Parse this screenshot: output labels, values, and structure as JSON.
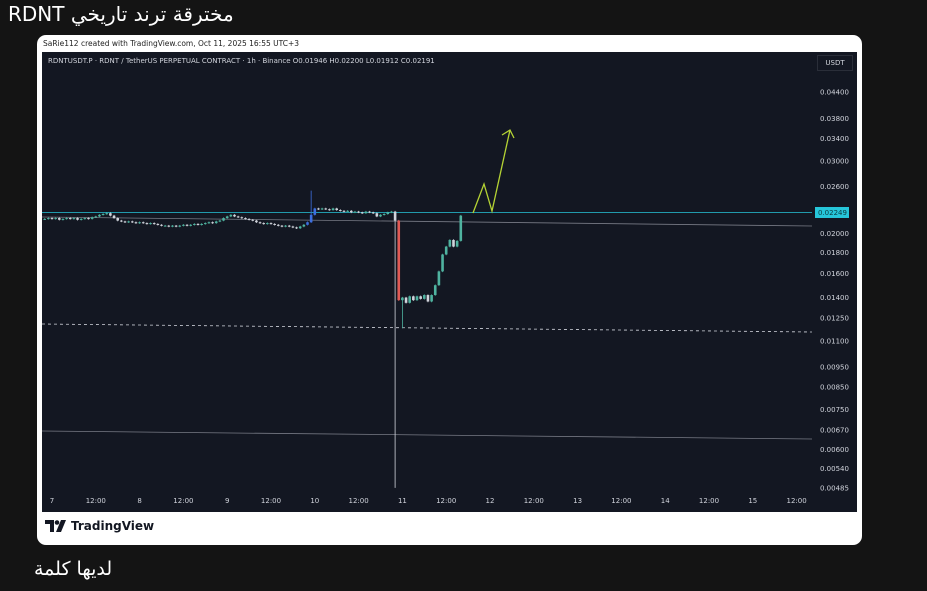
{
  "post": {
    "title": "مخترقة ترند تاريخي RDNT",
    "footer_text": "لديها كلمة"
  },
  "card": {
    "credit": "SaRie112 created with TradingView.com, Oct 11, 2025 16:55 UTC+3",
    "brand": "TradingView"
  },
  "chart_header": {
    "legend": "RDNTUSDT.P · RDNT / TetherUS PERPETUAL CONTRACT · 1h · Binance  O0.01946  H0.02200  L0.01912  C0.02191",
    "currency": "USDT"
  },
  "chart_data": {
    "type": "candlestick",
    "scale": "log",
    "grid": false,
    "current_price_label": "0.02249",
    "y_ticks": [
      "0.04400",
      "0.03800",
      "0.03400",
      "0.03000",
      "0.02600",
      "0.02000",
      "0.01800",
      "0.01600",
      "0.01400",
      "0.01250",
      "0.01100",
      "0.00950",
      "0.00850",
      "0.00750",
      "0.00670",
      "0.00600",
      "0.00540",
      "0.00485"
    ],
    "x_ticks": [
      "7",
      "12:00",
      "8",
      "12:00",
      "9",
      "12:00",
      "10",
      "12:00",
      "11",
      "12:00",
      "12",
      "12:00",
      "13",
      "12:00",
      "14",
      "12:00",
      "15",
      "12:00"
    ],
    "closes": [
      0.0217,
      0.0218,
      0.0217,
      0.0218,
      0.0216,
      0.0217,
      0.0218,
      0.0217,
      0.0218,
      0.0216,
      0.0217,
      0.0218,
      0.0217,
      0.0219,
      0.022,
      0.0222,
      0.0223,
      0.0224,
      0.0221,
      0.0218,
      0.0215,
      0.0214,
      0.0213,
      0.0214,
      0.0213,
      0.0212,
      0.0213,
      0.0212,
      0.0211,
      0.0212,
      0.0211,
      0.021,
      0.0209,
      0.0209,
      0.0208,
      0.0209,
      0.0208,
      0.0209,
      0.021,
      0.0209,
      0.021,
      0.0211,
      0.021,
      0.0211,
      0.0212,
      0.0213,
      0.0212,
      0.0214,
      0.0215,
      0.0218,
      0.022,
      0.0222,
      0.022,
      0.0219,
      0.0218,
      0.0217,
      0.0216,
      0.0215,
      0.0213,
      0.0212,
      0.0211,
      0.0212,
      0.0211,
      0.021,
      0.0209,
      0.0208,
      0.0209,
      0.0208,
      0.0207,
      0.0206,
      0.0208,
      0.021,
      0.0213,
      0.0222,
      0.023,
      0.0229,
      0.023,
      0.0229,
      0.0228,
      0.023,
      0.0228,
      0.0227,
      0.0226,
      0.0227,
      0.0225,
      0.0226,
      0.0225,
      0.0224,
      0.0226,
      0.0225,
      0.0224,
      0.022,
      0.0222,
      0.0223,
      0.0225,
      0.0226,
      0.0215,
      0.0138,
      0.014,
      0.0136,
      0.0141,
      0.0138,
      0.0141,
      0.0139,
      0.0142,
      0.0137,
      0.0142,
      0.015,
      0.0162,
      0.0178,
      0.0186,
      0.0193,
      0.0186,
      0.0192,
      0.0221
    ],
    "wick_lows": {
      "96": 0.00485,
      "98": 0.0118
    },
    "up_color": "#4fb3a0",
    "down_color": "#d1d4dc",
    "crash_color": "#e05a55",
    "breakout_color": "#3d6fe0",
    "level_color": "#26c6da",
    "arrow_color": "#b5d334"
  }
}
